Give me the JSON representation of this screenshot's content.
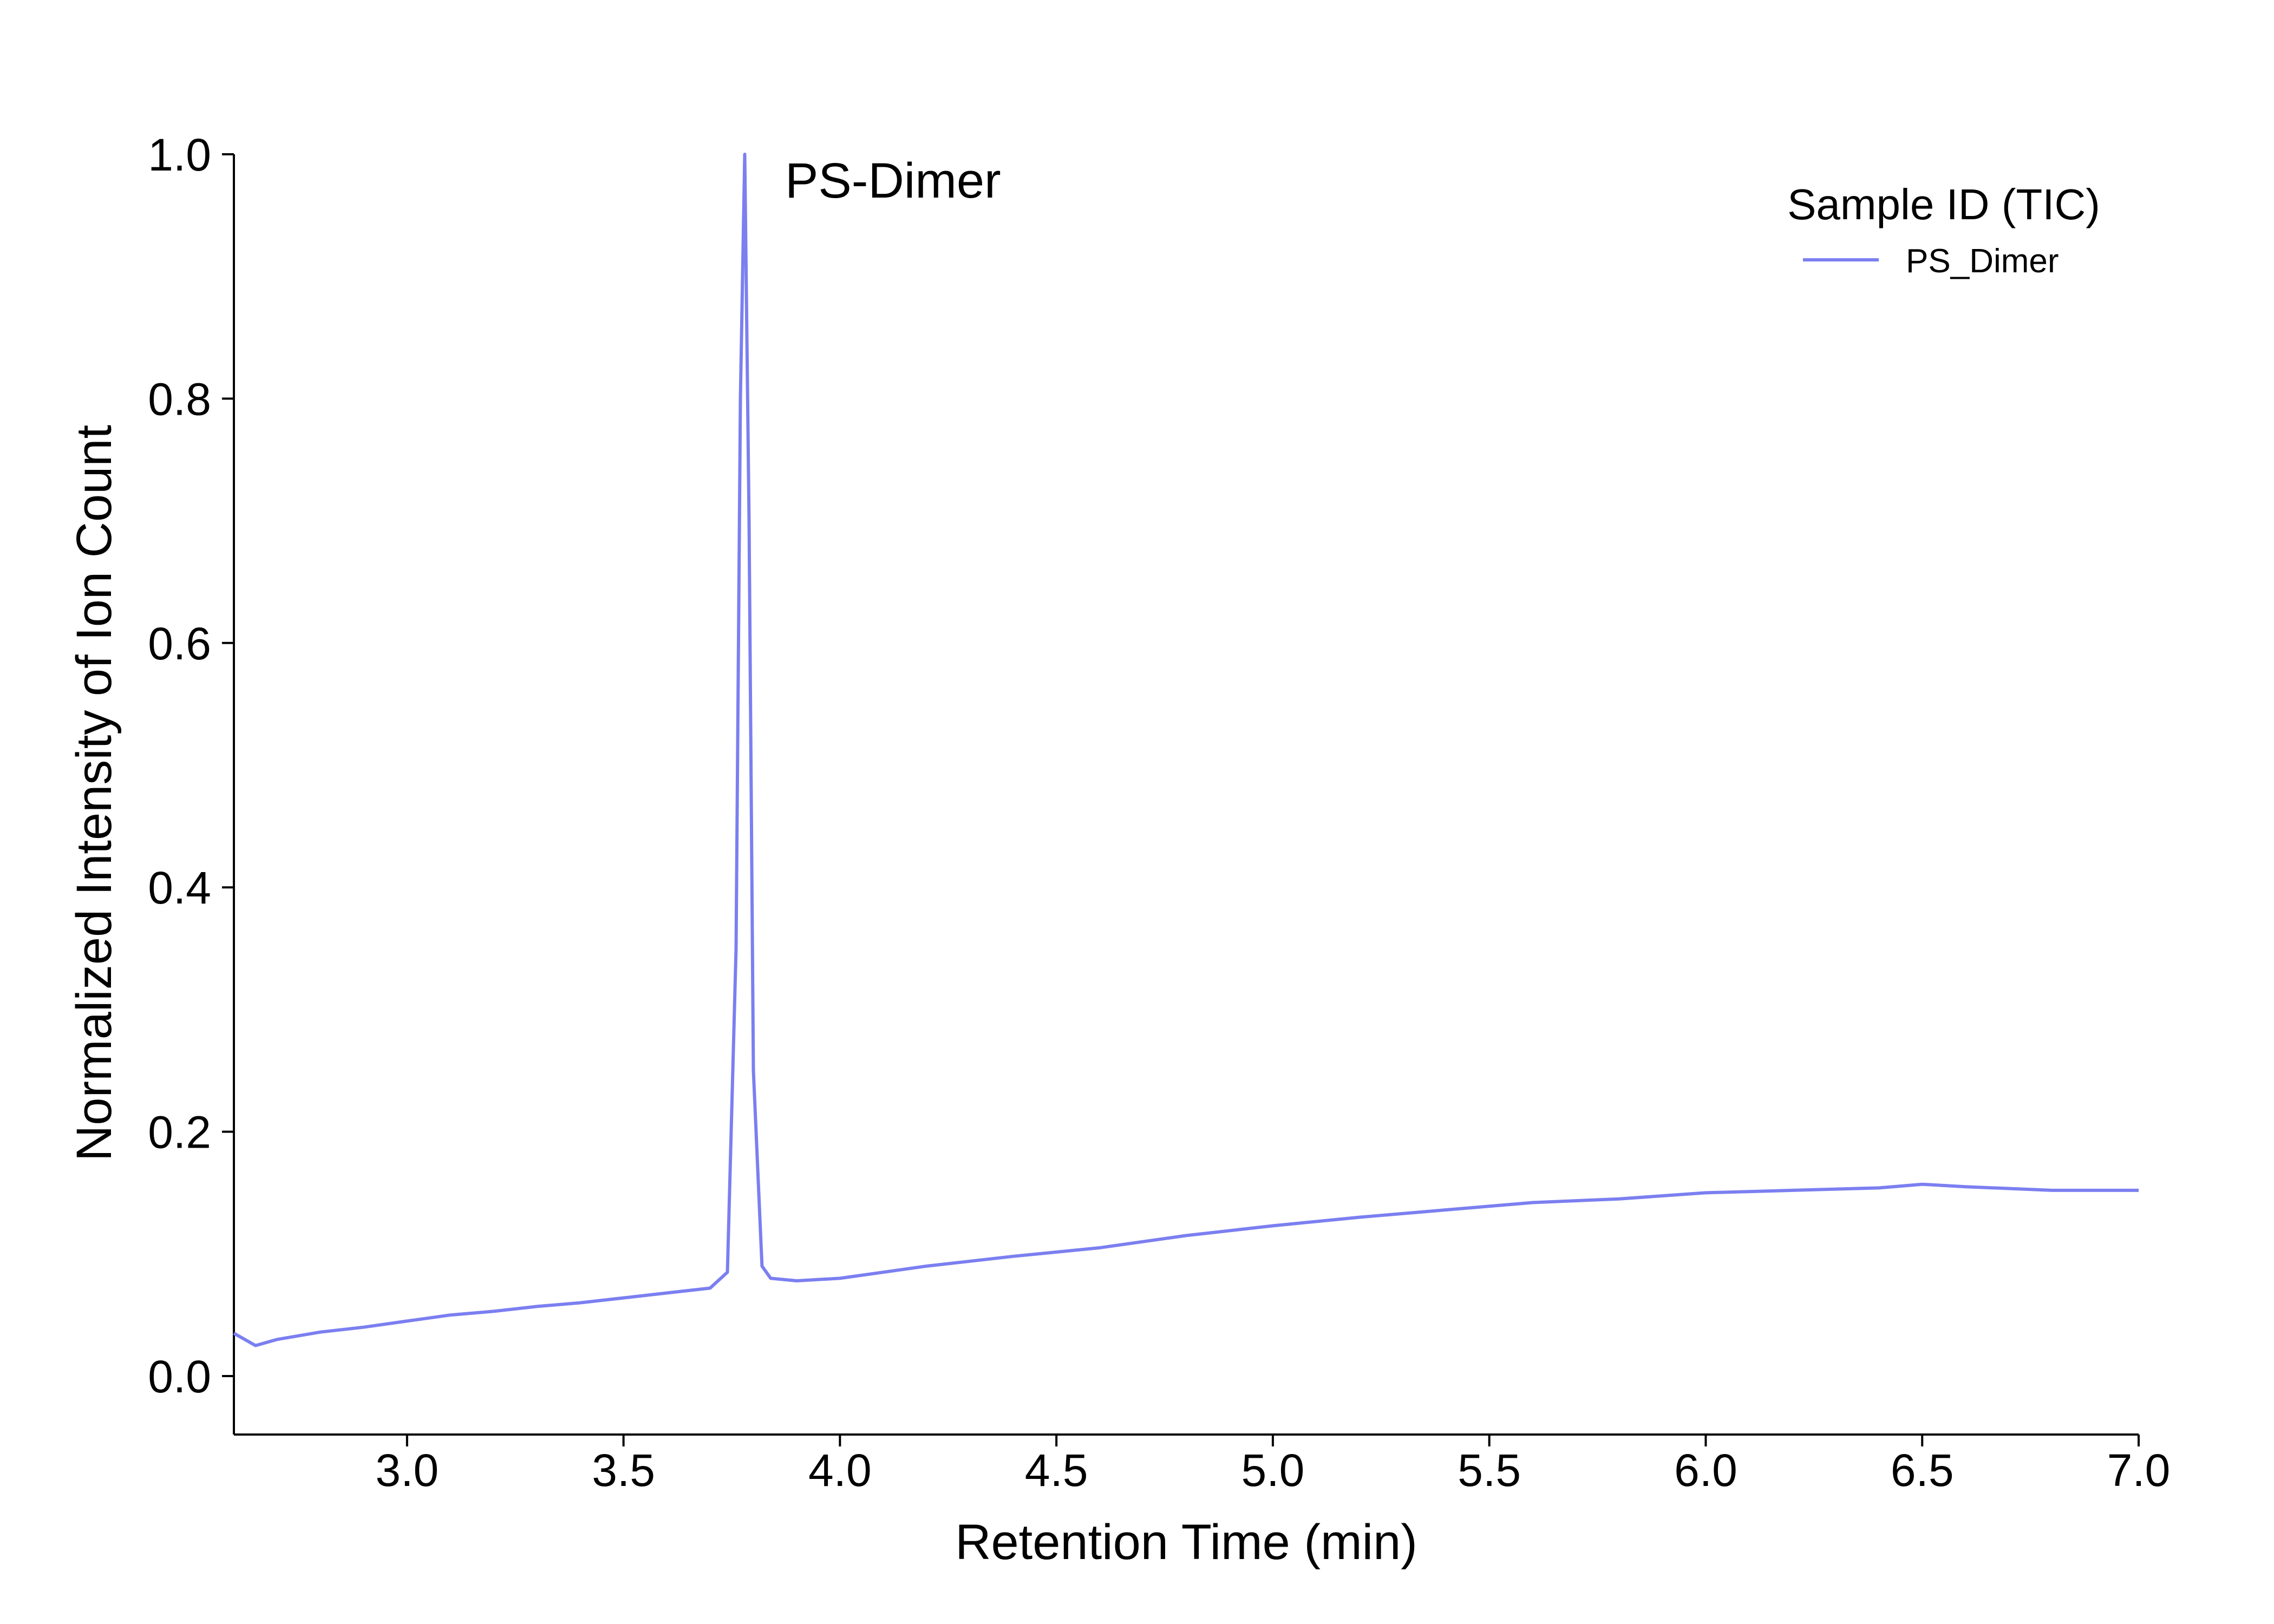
{
  "chart_data": {
    "type": "line",
    "title": "",
    "xlabel": "Retention Time (min)",
    "ylabel": "Normalized Intensity of Ion Count",
    "xlim": [
      2.6,
      7.0
    ],
    "ylim": [
      -0.05,
      1.0
    ],
    "x_ticks": [
      "3.0",
      "3.5",
      "4.0",
      "4.5",
      "5.0",
      "5.5",
      "6.0",
      "6.5",
      "7.0"
    ],
    "y_ticks": [
      "0.0",
      "0.2",
      "0.4",
      "0.6",
      "0.8",
      "1.0"
    ],
    "grid": false,
    "legend": {
      "title": "Sample ID (TIC)",
      "position": "top-right"
    },
    "annotation": {
      "text": "PS-Dimer",
      "x": 3.8,
      "y": 1.0
    },
    "series": [
      {
        "name": "PS_Dimer",
        "color": "#7b7ff0",
        "x": [
          2.6,
          2.65,
          2.7,
          2.8,
          2.9,
          3.0,
          3.1,
          3.2,
          3.3,
          3.4,
          3.5,
          3.6,
          3.7,
          3.74,
          3.76,
          3.77,
          3.78,
          3.79,
          3.8,
          3.82,
          3.84,
          3.9,
          4.0,
          4.2,
          4.4,
          4.6,
          4.8,
          5.0,
          5.2,
          5.4,
          5.6,
          5.8,
          6.0,
          6.2,
          6.4,
          6.5,
          6.6,
          6.8,
          7.0
        ],
        "values": [
          0.035,
          0.025,
          0.03,
          0.036,
          0.04,
          0.045,
          0.05,
          0.053,
          0.057,
          0.06,
          0.064,
          0.068,
          0.072,
          0.085,
          0.35,
          0.8,
          1.0,
          0.7,
          0.25,
          0.09,
          0.08,
          0.078,
          0.08,
          0.09,
          0.098,
          0.105,
          0.115,
          0.123,
          0.13,
          0.136,
          0.142,
          0.145,
          0.15,
          0.152,
          0.154,
          0.157,
          0.155,
          0.152,
          0.152
        ]
      }
    ]
  }
}
